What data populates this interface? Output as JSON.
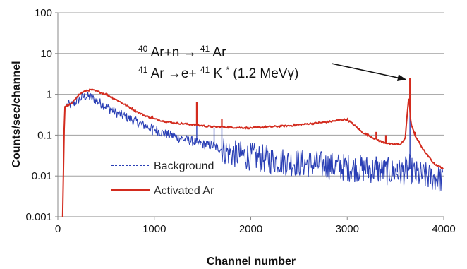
{
  "chart_data": {
    "type": "line",
    "xlabel": "Channel number",
    "ylabel": "Counts/sec/channel",
    "xlim": [
      0,
      4000
    ],
    "ylim": [
      0.001,
      100
    ],
    "yscale": "log",
    "grid": "horizontal",
    "x_ticks": [
      "0",
      "1000",
      "2000",
      "3000",
      "4000"
    ],
    "y_ticks": [
      "0.001",
      "0.01",
      "0.1",
      "1",
      "10",
      "100"
    ],
    "legend_position": "lower-left",
    "annotation": {
      "line1": {
        "pre": "40",
        "a": "Ar+n →",
        "sup": "41",
        "b": "Ar"
      },
      "line2": {
        "pre": "41",
        "a": "Ar  →e+",
        "sup": "41",
        "b": "K",
        "sup2": "*",
        "c": " (1.2 MeVγ)"
      },
      "arrow_target": {
        "x": 3640,
        "y": 2.5
      }
    },
    "series": [
      {
        "name": "Background",
        "color": "#2a3fb5",
        "style": "dotted",
        "points": [
          [
            95,
            0.55
          ],
          [
            150,
            0.55
          ],
          [
            200,
            0.7
          ],
          [
            250,
            0.85
          ],
          [
            300,
            0.9
          ],
          [
            350,
            0.82
          ],
          [
            400,
            0.7
          ],
          [
            500,
            0.5
          ],
          [
            600,
            0.36
          ],
          [
            700,
            0.28
          ],
          [
            800,
            0.22
          ],
          [
            900,
            0.17
          ],
          [
            1000,
            0.14
          ],
          [
            1100,
            0.11
          ],
          [
            1200,
            0.095
          ],
          [
            1300,
            0.08
          ],
          [
            1400,
            0.07
          ],
          [
            1500,
            0.06
          ],
          [
            1600,
            0.055
          ],
          [
            1700,
            0.045
          ],
          [
            1800,
            0.035
          ],
          [
            2000,
            0.03
          ],
          [
            2200,
            0.025
          ],
          [
            2400,
            0.022
          ],
          [
            2600,
            0.02
          ],
          [
            2800,
            0.018
          ],
          [
            3000,
            0.016
          ],
          [
            3200,
            0.015
          ],
          [
            3400,
            0.013
          ],
          [
            3550,
            0.012
          ],
          [
            3650,
            0.015
          ],
          [
            3700,
            0.011
          ],
          [
            3800,
            0.01
          ],
          [
            3900,
            0.009
          ],
          [
            4000,
            0.008
          ]
        ],
        "peaks": [
          [
            980,
            0.1
          ],
          [
            1440,
            0.45
          ],
          [
            1620,
            0.15
          ],
          [
            1700,
            0.17
          ],
          [
            3300,
            0.03
          ],
          [
            3520,
            0.02
          ],
          [
            3650,
            0.4
          ]
        ]
      },
      {
        "name": "Activated Ar",
        "color": "#d32b1e",
        "style": "solid",
        "points": [
          [
            50,
            0.001
          ],
          [
            70,
            0.5
          ],
          [
            90,
            0.52
          ],
          [
            150,
            0.6
          ],
          [
            200,
            0.9
          ],
          [
            250,
            1.1
          ],
          [
            300,
            1.25
          ],
          [
            350,
            1.28
          ],
          [
            400,
            1.2
          ],
          [
            500,
            1.0
          ],
          [
            600,
            0.75
          ],
          [
            700,
            0.55
          ],
          [
            800,
            0.4
          ],
          [
            900,
            0.3
          ],
          [
            1000,
            0.25
          ],
          [
            1100,
            0.22
          ],
          [
            1200,
            0.2
          ],
          [
            1300,
            0.19
          ],
          [
            1400,
            0.18
          ],
          [
            1500,
            0.17
          ],
          [
            1600,
            0.16
          ],
          [
            1700,
            0.16
          ],
          [
            1800,
            0.155
          ],
          [
            2000,
            0.15
          ],
          [
            2200,
            0.16
          ],
          [
            2400,
            0.17
          ],
          [
            2600,
            0.19
          ],
          [
            2800,
            0.21
          ],
          [
            2950,
            0.24
          ],
          [
            3000,
            0.24
          ],
          [
            3080,
            0.17
          ],
          [
            3150,
            0.12
          ],
          [
            3250,
            0.09
          ],
          [
            3350,
            0.07
          ],
          [
            3450,
            0.06
          ],
          [
            3550,
            0.06
          ],
          [
            3600,
            0.08
          ],
          [
            3620,
            0.3
          ],
          [
            3640,
            0.9
          ],
          [
            3660,
            0.2
          ],
          [
            3700,
            0.1
          ],
          [
            3800,
            0.04
          ],
          [
            3900,
            0.02
          ],
          [
            4000,
            0.015
          ]
        ],
        "peaks": [
          [
            980,
            0.3
          ],
          [
            1440,
            0.65
          ],
          [
            1700,
            0.25
          ],
          [
            3300,
            0.12
          ],
          [
            3400,
            0.1
          ],
          [
            3650,
            2.5
          ],
          [
            3700,
            0.12
          ]
        ]
      }
    ]
  }
}
